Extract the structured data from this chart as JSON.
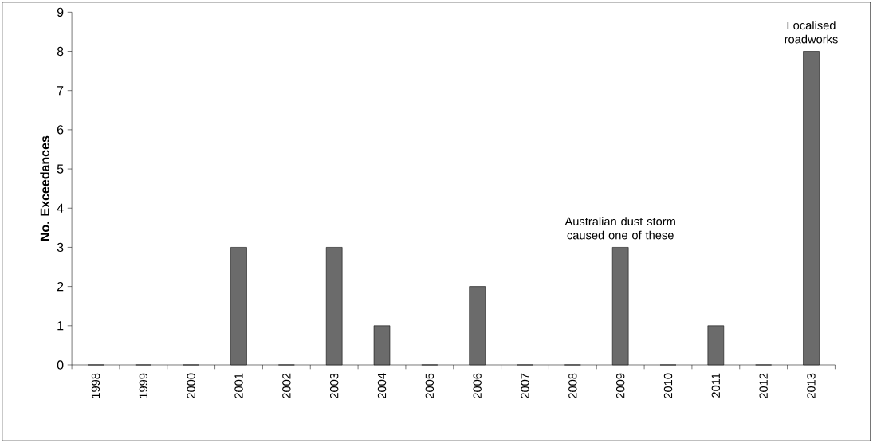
{
  "chart_data": {
    "type": "bar",
    "ylabel": "No. Exceedances",
    "categories": [
      "1998",
      "1999",
      "2000",
      "2001",
      "2002",
      "2003",
      "2004",
      "2005",
      "2006",
      "2007",
      "2008",
      "2009",
      "2010",
      "2011",
      "2012",
      "2013"
    ],
    "values": [
      0,
      0,
      0,
      3,
      0,
      3,
      1,
      0,
      2,
      0,
      0,
      3,
      0,
      1,
      0,
      8
    ],
    "color": "#6b6b6b",
    "ylim": [
      0,
      9
    ],
    "yticks": [
      0,
      1,
      2,
      3,
      4,
      5,
      6,
      7,
      8,
      9
    ],
    "annotations": [
      {
        "text": "Australian dust storm caused one of these",
        "x": "2009",
        "y": 3
      },
      {
        "text": "Localised roadworks",
        "x": "2013",
        "y": 8
      }
    ]
  }
}
